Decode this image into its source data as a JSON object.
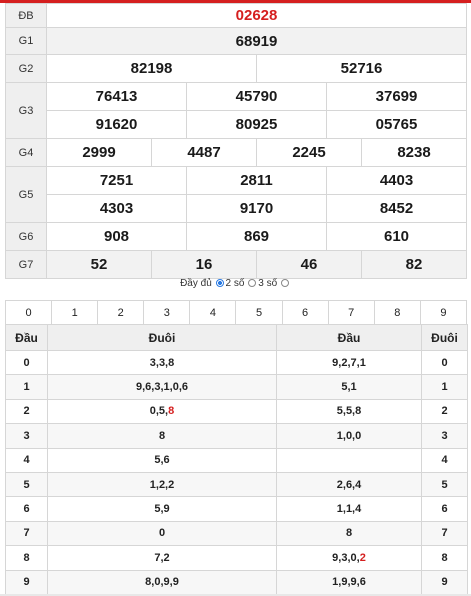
{
  "results": {
    "db": {
      "label": "ĐB",
      "values": [
        "02628"
      ]
    },
    "g1": {
      "label": "G1",
      "values": [
        "68919"
      ]
    },
    "g2": {
      "label": "G2",
      "values": [
        "82198",
        "52716"
      ]
    },
    "g3": {
      "label": "G3",
      "values": [
        "76413",
        "45790",
        "37699",
        "91620",
        "80925",
        "05765"
      ]
    },
    "g4": {
      "label": "G4",
      "values": [
        "2999",
        "4487",
        "2245",
        "8238"
      ]
    },
    "g5": {
      "label": "G5",
      "values": [
        "7251",
        "2811",
        "4403",
        "4303",
        "9170",
        "8452"
      ]
    },
    "g6": {
      "label": "G6",
      "values": [
        "908",
        "869",
        "610"
      ]
    },
    "g7": {
      "label": "G7",
      "values": [
        "52",
        "16",
        "46",
        "82"
      ]
    }
  },
  "options": {
    "full": "Đầy đủ",
    "two": "2 số",
    "three": "3 số"
  },
  "digit_filter": [
    "0",
    "1",
    "2",
    "3",
    "4",
    "5",
    "6",
    "7",
    "8",
    "9"
  ],
  "loto": {
    "headers": {
      "dau": "Đầu",
      "duoi": "Đuôi",
      "dau2": "Đầu",
      "duoi2": "Đuôi"
    },
    "rows": [
      {
        "head": "0",
        "tails": [
          "3,3,8"
        ],
        "heads": [
          "9,2,7,1"
        ],
        "tail": "0"
      },
      {
        "head": "1",
        "tails": [
          "9,6,3,1,0,6"
        ],
        "heads": [
          "5,1"
        ],
        "tail": "1"
      },
      {
        "head": "2",
        "tails": [
          "0,5,",
          "8"
        ],
        "heads": [
          "5,5,8"
        ],
        "tail": "2"
      },
      {
        "head": "3",
        "tails": [
          "8"
        ],
        "heads": [
          "1,0,0"
        ],
        "tail": "3"
      },
      {
        "head": "4",
        "tails": [
          "5,6"
        ],
        "heads": [
          ""
        ],
        "tail": "4"
      },
      {
        "head": "5",
        "tails": [
          "1,2,2"
        ],
        "heads": [
          "2,6,4"
        ],
        "tail": "5"
      },
      {
        "head": "6",
        "tails": [
          "5,9"
        ],
        "heads": [
          "1,1,4"
        ],
        "tail": "6"
      },
      {
        "head": "7",
        "tails": [
          "0"
        ],
        "heads": [
          "8"
        ],
        "tail": "7"
      },
      {
        "head": "8",
        "tails": [
          "7,2"
        ],
        "heads": [
          "9,3,0,",
          "2"
        ],
        "tail": "8"
      },
      {
        "head": "9",
        "tails": [
          "8,0,9,9"
        ],
        "heads": [
          "1,9,9,6"
        ],
        "tail": "9"
      }
    ]
  },
  "colors": {
    "accent": "#d51f1f",
    "radio": "#2a7ae2"
  }
}
